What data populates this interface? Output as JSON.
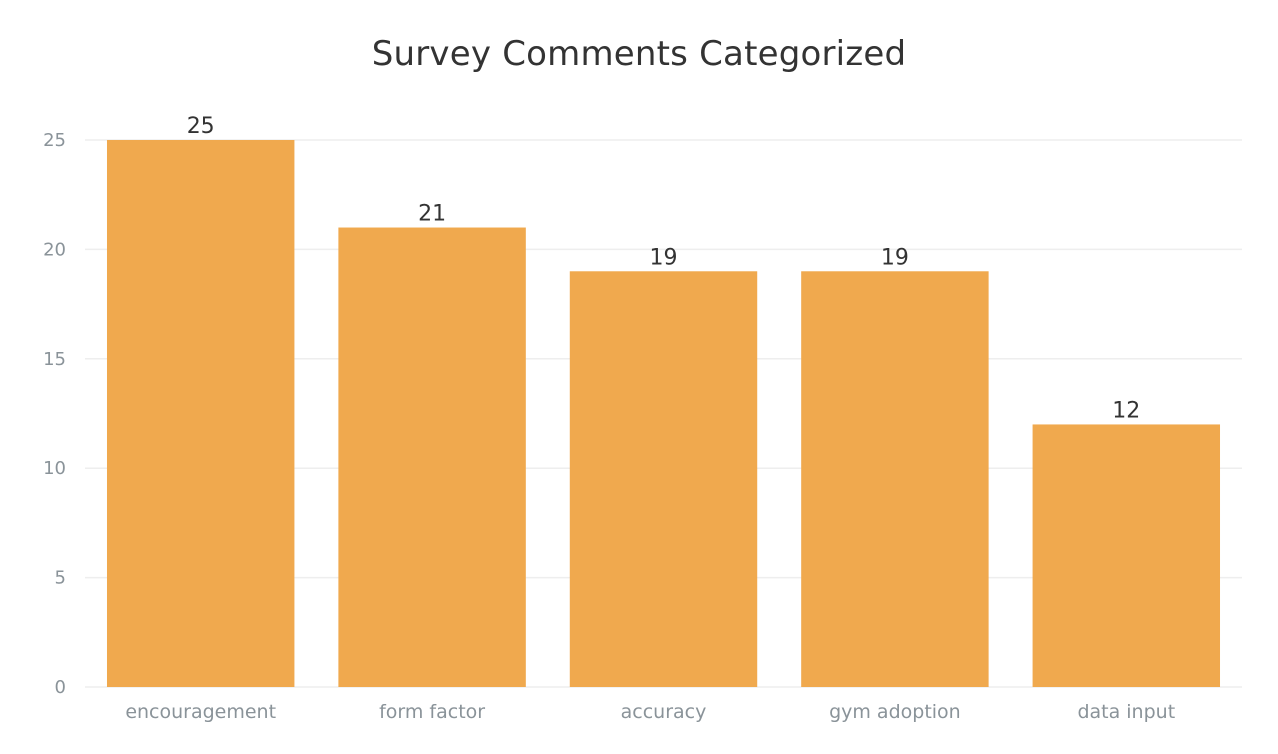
{
  "chart_data": {
    "type": "bar",
    "title": "Survey Comments Categorized",
    "xlabel": "",
    "ylabel": "",
    "categories": [
      "encouragement",
      "form factor",
      "accuracy",
      "gym adoption",
      "data input"
    ],
    "values": [
      25,
      21,
      19,
      19,
      12
    ],
    "data_labels": [
      "25",
      "21",
      "19",
      "19",
      "12"
    ],
    "ylim": [
      0,
      25
    ],
    "yticks": [
      0,
      5,
      10,
      15,
      20,
      25
    ],
    "ytick_labels": [
      "0",
      "5",
      "10",
      "15",
      "20",
      "25"
    ],
    "grid": true,
    "legend": "none",
    "colors": {
      "bar": "#f0a94e",
      "grid": "#eeeeee",
      "title": "#333333",
      "axis_text": "#8a9399",
      "data_label": "#333333"
    }
  }
}
